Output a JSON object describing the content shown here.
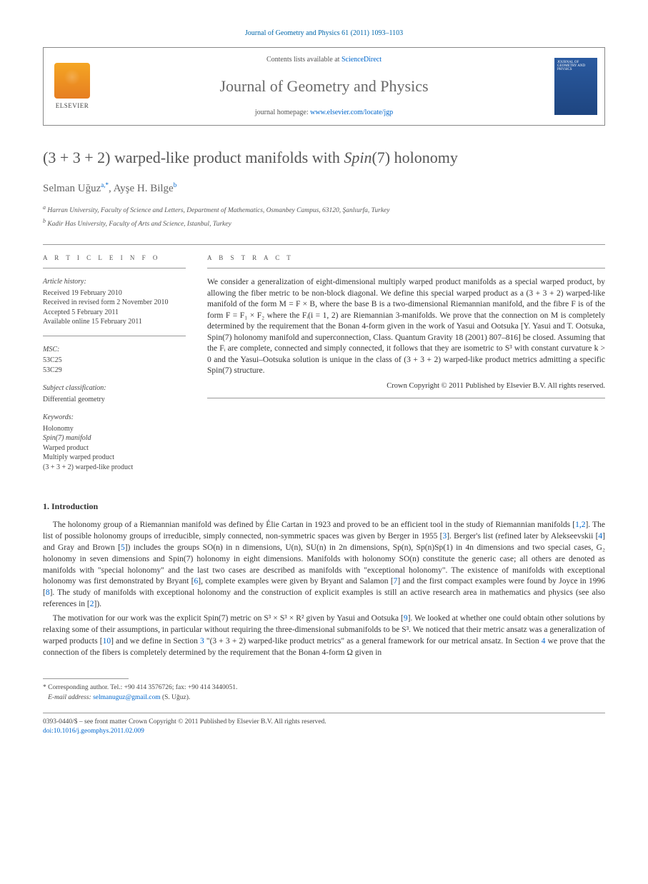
{
  "pageHeader": "Journal of Geometry and Physics 61 (2011) 1093–1103",
  "masthead": {
    "contentsPrefix": "Contents lists available at ",
    "contentsLink": "ScienceDirect",
    "journalName": "Journal of Geometry and Physics",
    "homepagePrefix": "journal homepage: ",
    "homepageLink": "www.elsevier.com/locate/jgp",
    "publisherLabel": "ELSEVIER",
    "coverTitle": "JOURNAL OF GEOMETRY AND PHYSICS"
  },
  "title": "(3 + 3 + 2) warped-like product manifolds with <em>Spin</em>(7) holonomy",
  "authors": [
    {
      "name": "Selman Uğuz",
      "markers": "a,*"
    },
    {
      "name": "Ayşe H. Bilge",
      "markers": "b"
    }
  ],
  "affiliations": [
    {
      "marker": "a",
      "text": "Harran University, Faculty of Science and Letters, Department of Mathematics, Osmanbey Campus, 63120, Şanlıurfa, Turkey"
    },
    {
      "marker": "b",
      "text": "Kadir Has University, Faculty of Arts and Science, Istanbul, Turkey"
    }
  ],
  "infoLabel": "A R T I C L E   I N F O",
  "abstractLabel": "A B S T R A C T",
  "history": {
    "head": "Article history:",
    "received": "Received 19 February 2010",
    "revised": "Received in revised form 2 November 2010",
    "accepted": "Accepted 5 February 2011",
    "online": "Available online 15 February 2011"
  },
  "msc": {
    "head": "MSC:",
    "codes": [
      "53C25",
      "53C29"
    ]
  },
  "subject": {
    "head": "Subject classification:",
    "value": "Differential geometry"
  },
  "keywords": {
    "head": "Keywords:",
    "items": [
      "Holonomy",
      "Spin(7) manifold",
      "Warped product",
      "Multiply warped product",
      "(3 + 3 + 2) warped-like product"
    ]
  },
  "abstract": "We consider a generalization of eight-dimensional multiply warped product manifolds as a special warped product, by allowing the fiber metric to be non-block diagonal. We define this special warped product as a (3 + 3 + 2) warped-like manifold of the form M = F × B, where the base B is a two-dimensional Riemannian manifold, and the fibre F is of the form F = F₁ × F₂ where the Fᵢ(i = 1, 2) are Riemannian 3-manifolds. We prove that the connection on M is completely determined by the requirement that the Bonan 4-form given in the work of Yasui and Ootsuka [Y. Yasui and T. Ootsuka, Spin(7) holonomy manifold and superconnection, Class. Quantum Gravity 18 (2001) 807–816] be closed. Assuming that the Fᵢ are complete, connected and simply connected, it follows that they are isometric to S³ with constant curvature k > 0 and the Yasui–Ootsuka solution is unique in the class of (3 + 3 + 2) warped-like product metrics admitting a specific Spin(7) structure.",
  "copyright": "Crown Copyright © 2011 Published by Elsevier B.V. All rights reserved.",
  "introHead": "1. Introduction",
  "para1_a": "The holonomy group of a Riemannian manifold was defined by Élie Cartan in 1923 and proved to be an efficient tool in the study of Riemannian manifolds [",
  "para1_b": "]. The list of possible holonomy groups of irreducible, simply connected, non-symmetric spaces was given by Berger in 1955 [",
  "para1_c": "]. Berger's list (refined later by Alekseevskii [",
  "para1_d": "] and Gray and Brown [",
  "para1_e": "]) includes the groups SO(n) in n dimensions, U(n), SU(n) in 2n dimensions, Sp(n), Sp(n)Sp(1) in 4n dimensions and two special cases, G₂ holonomy in seven dimensions and Spin(7) holonomy in eight dimensions. Manifolds with holonomy SO(n) constitute the generic case; all others are denoted as manifolds with \"special holonomy\" and the last two cases are described as manifolds with \"exceptional holonomy\". The existence of manifolds with exceptional holonomy was first demonstrated by Bryant [",
  "para1_f": "], complete examples were given by Bryant and Salamon [",
  "para1_g": "] and the first compact examples were found by Joyce in 1996 [",
  "para1_h": "]. The study of manifolds with exceptional holonomy and the construction of explicit examples is still an active research area in mathematics and physics (see also references in [",
  "para1_i": "]).",
  "para2_a": "The motivation for our work was the explicit Spin(7) metric on S³ × S³ × R² given by Yasui and Ootsuka [",
  "para2_b": "]. We looked at whether one could obtain other solutions by relaxing some of their assumptions, in particular without requiring the three-dimensional submanifolds to be S³. We noticed that their metric ansatz was a generalization of warped products [",
  "para2_c": "] and we define in Section ",
  "para2_d": " \"(3 + 3 + 2) warped-like product metrics\" as a general framework for our metrical ansatz. In Section ",
  "para2_e": " we prove that the connection of the fibers is completely determined by the requirement that the Bonan 4-form Ω given in",
  "refs": {
    "r12": "1,2",
    "r3": "3",
    "r4": "4",
    "r5": "5",
    "r6": "6",
    "r7": "7",
    "r8": "8",
    "r2": "2",
    "r9": "9",
    "r10": "10",
    "s3": "3",
    "s4": "4"
  },
  "footnotes": {
    "corr": "Corresponding author. Tel.: +90 414 3576726; fax: +90 414 3440051.",
    "emailLabel": "E-mail address:",
    "email": "selmanuguz@gmail.com",
    "emailOwner": "(S. Uğuz)."
  },
  "bottom": {
    "line1": "0393-0440/$ – see front matter Crown Copyright © 2011 Published by Elsevier B.V. All rights reserved.",
    "doi": "doi:10.1016/j.geomphys.2011.02.009"
  },
  "colors": {
    "link": "#0066cc",
    "heading": "#555555",
    "rule": "#999999",
    "coverBg": "#2a5aa0"
  }
}
